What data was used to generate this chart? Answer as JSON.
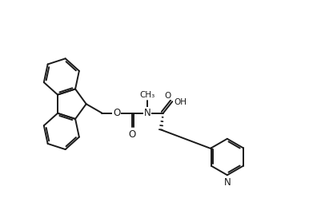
{
  "bg_color": "#ffffff",
  "line_color": "#1a1a1a",
  "line_width": 1.4,
  "font_size": 8.5,
  "fig_width": 4.01,
  "fig_height": 2.68,
  "dpi": 100,
  "xlim": [
    0,
    10
  ],
  "ylim": [
    0,
    7
  ]
}
